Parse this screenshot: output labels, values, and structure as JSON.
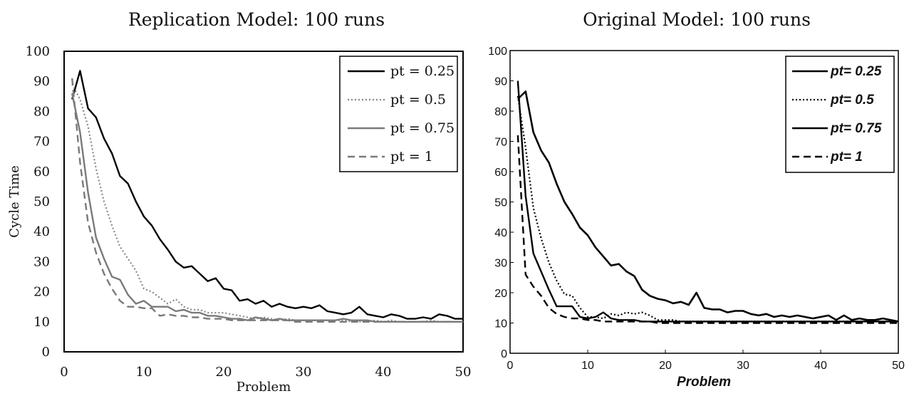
{
  "chart_data": [
    {
      "type": "line",
      "title": "Replication Model: 100 runs",
      "xlabel": "Problem",
      "ylabel": "Cycle Time",
      "xlim": [
        0,
        50
      ],
      "ylim": [
        0,
        100
      ],
      "xticks": [
        "0",
        "10",
        "20",
        "30",
        "40",
        "50"
      ],
      "yticks": [
        "0",
        "10",
        "20",
        "30",
        "40",
        "50",
        "60",
        "70",
        "80",
        "90",
        "100"
      ],
      "legend_position": "top-right",
      "series": [
        {
          "name": "pt = 0.25",
          "color": "#000000",
          "style": "solid",
          "x": [
            1,
            2,
            3,
            4,
            5,
            6,
            7,
            8,
            9,
            10,
            11,
            12,
            13,
            14,
            15,
            16,
            17,
            18,
            19,
            20,
            21,
            22,
            23,
            24,
            25,
            26,
            27,
            28,
            29,
            30,
            31,
            32,
            33,
            34,
            35,
            36,
            37,
            38,
            39,
            40,
            41,
            42,
            43,
            44,
            45,
            46,
            47,
            48,
            49,
            50
          ],
          "y": [
            84,
            93.5,
            81,
            78,
            71,
            66,
            58.5,
            56,
            50,
            45,
            42,
            37.5,
            34,
            30,
            28,
            28.5,
            26,
            23.5,
            24.5,
            21,
            20.5,
            17,
            17.5,
            16,
            17,
            15,
            16,
            15,
            14.5,
            15,
            14.5,
            15.5,
            13.5,
            13,
            12.5,
            13,
            15,
            12.5,
            12,
            11.5,
            12.5,
            12,
            11,
            11,
            11.5,
            11,
            12.5,
            12,
            11,
            11
          ]
        },
        {
          "name": "pt = 0.5",
          "color": "#888888",
          "style": "dotted",
          "x": [
            1,
            2,
            3,
            4,
            5,
            6,
            7,
            8,
            9,
            10,
            11,
            12,
            13,
            14,
            15,
            16,
            17,
            18,
            19,
            20,
            21,
            22,
            23,
            24,
            25,
            26,
            27,
            28,
            29,
            30,
            31,
            32,
            33,
            34,
            35,
            36,
            37,
            38,
            39,
            40,
            41,
            42,
            43,
            44,
            45,
            46,
            47,
            48,
            49,
            50
          ],
          "y": [
            89,
            84,
            75,
            61,
            50,
            42,
            35,
            31,
            27,
            21,
            20,
            18,
            16,
            17.5,
            15,
            14,
            14,
            13,
            13,
            13,
            12.5,
            12,
            11.5,
            11,
            11.5,
            11,
            10.5,
            11,
            10.5,
            10.5,
            10.5,
            10.5,
            10.5,
            10.5,
            10.5,
            10,
            10,
            10,
            10.5,
            10,
            10.5,
            10,
            10,
            10,
            10,
            10.5,
            10,
            10,
            10,
            10
          ]
        },
        {
          "name": "pt = 0.75",
          "color": "#7a7a7a",
          "style": "solid",
          "x": [
            1,
            2,
            3,
            4,
            5,
            6,
            7,
            8,
            9,
            10,
            11,
            12,
            13,
            14,
            15,
            16,
            17,
            18,
            19,
            20,
            21,
            22,
            23,
            24,
            25,
            26,
            27,
            28,
            29,
            30,
            31,
            32,
            33,
            34,
            35,
            36,
            37,
            38,
            39,
            40,
            41,
            42,
            43,
            44,
            45,
            46,
            47,
            48,
            49,
            50
          ],
          "y": [
            86,
            73,
            53,
            38,
            31,
            25,
            24,
            19,
            16,
            17,
            15,
            15,
            15,
            13.5,
            14,
            13,
            13,
            12,
            12,
            11.5,
            11,
            11,
            10.5,
            11.5,
            11,
            10.5,
            11,
            10.5,
            10.5,
            10.5,
            10.5,
            10.5,
            10.5,
            10.5,
            11,
            10.5,
            10.5,
            10.5,
            10,
            10,
            10,
            10,
            10,
            10,
            10,
            10,
            10,
            10,
            10,
            10
          ]
        },
        {
          "name": "pt = 1",
          "color": "#7a7a7a",
          "style": "dashed",
          "x": [
            1,
            2,
            3,
            4,
            5,
            6,
            7,
            8,
            9,
            10,
            11,
            12,
            13,
            14,
            15,
            16,
            17,
            18,
            19,
            20,
            21,
            22,
            23,
            24,
            25,
            26,
            27,
            28,
            29,
            30,
            31,
            32,
            33,
            34,
            35,
            36,
            37,
            38,
            39,
            40,
            41,
            42,
            43,
            44,
            45,
            46,
            47,
            48,
            49,
            50
          ],
          "y": [
            91,
            63,
            43,
            33,
            26,
            21,
            17,
            15,
            15,
            14.5,
            14.5,
            12,
            12.5,
            12,
            12,
            11.5,
            11.5,
            11,
            11,
            11,
            10.5,
            10.5,
            10.5,
            10.5,
            10.5,
            10.5,
            10.5,
            10.5,
            10,
            10,
            10,
            10,
            10,
            10,
            10,
            10,
            10,
            10,
            10,
            10,
            10,
            10,
            10,
            10,
            10,
            10,
            10,
            10,
            10,
            10
          ]
        }
      ]
    },
    {
      "type": "line",
      "title": "Original Model: 100 runs",
      "xlabel": "Problem",
      "ylabel": "",
      "xlim": [
        0,
        50
      ],
      "ylim": [
        0,
        100
      ],
      "xticks": [
        "0",
        "10",
        "20",
        "30",
        "40",
        "50"
      ],
      "yticks": [
        "0",
        "10",
        "20",
        "30",
        "40",
        "50",
        "60",
        "70",
        "80",
        "90",
        "100"
      ],
      "legend_position": "top-right",
      "series": [
        {
          "name": "pt= 0.25",
          "color": "#000000",
          "style": "solid-thick",
          "x": [
            1,
            2,
            3,
            4,
            5,
            6,
            7,
            8,
            9,
            10,
            11,
            12,
            13,
            14,
            15,
            16,
            17,
            18,
            19,
            20,
            21,
            22,
            23,
            24,
            25,
            26,
            27,
            28,
            29,
            30,
            31,
            32,
            33,
            34,
            35,
            36,
            37,
            38,
            39,
            40,
            41,
            42,
            43,
            44,
            45,
            46,
            47,
            48,
            49,
            50
          ],
          "y": [
            84,
            86.5,
            73,
            67,
            63,
            56,
            50,
            46,
            41.5,
            39,
            35,
            32,
            29,
            29.5,
            27,
            25.5,
            21,
            19,
            18,
            17.5,
            16.5,
            17,
            16,
            20,
            15,
            14.5,
            14.5,
            13.5,
            14,
            14,
            13,
            12.5,
            13,
            12,
            12.5,
            12,
            12.5,
            12,
            11.5,
            12,
            12.5,
            11,
            12.5,
            11,
            11.5,
            11,
            11,
            11.5,
            11,
            10.5
          ]
        },
        {
          "name": "pt= 0.5",
          "color": "#000000",
          "style": "dotted",
          "x": [
            1,
            2,
            3,
            4,
            5,
            6,
            7,
            8,
            9,
            10,
            11,
            12,
            13,
            14,
            15,
            16,
            17,
            18,
            19,
            20,
            21,
            22,
            23,
            24,
            25,
            26,
            27,
            28,
            29,
            30,
            31,
            32,
            33,
            34,
            35,
            36,
            37,
            38,
            39,
            40,
            41,
            42,
            43,
            44,
            45,
            46,
            47,
            48,
            49,
            50
          ],
          "y": [
            85,
            68,
            48,
            38,
            30,
            24,
            19.5,
            19,
            15,
            12,
            12,
            11.5,
            13,
            12.5,
            13.5,
            13,
            13.5,
            12.5,
            11,
            11,
            11,
            10.5,
            10.5,
            10.5,
            10.5,
            10.5,
            10.5,
            10.5,
            10.5,
            10.5,
            10.5,
            10.5,
            10.5,
            10.5,
            10.5,
            10.5,
            10.5,
            10.5,
            10.5,
            10.5,
            10.5,
            10.5,
            10.5,
            10.5,
            10.5,
            10.5,
            10.5,
            10.5,
            10.5,
            10.5
          ]
        },
        {
          "name": "pt= 0.75",
          "color": "#000000",
          "style": "solid",
          "x": [
            1,
            2,
            3,
            4,
            5,
            6,
            7,
            8,
            9,
            10,
            11,
            12,
            13,
            14,
            15,
            16,
            17,
            18,
            19,
            20,
            21,
            22,
            23,
            24,
            25,
            26,
            27,
            28,
            29,
            30,
            31,
            32,
            33,
            34,
            35,
            36,
            37,
            38,
            39,
            40,
            41,
            42,
            43,
            44,
            45,
            46,
            47,
            48,
            49,
            50
          ],
          "y": [
            90,
            52,
            33,
            27,
            21,
            15.5,
            15.5,
            15.5,
            12,
            11.5,
            12,
            13.5,
            11.5,
            11,
            11,
            11,
            10.5,
            10.5,
            10.5,
            10.5,
            10.5,
            10.5,
            10.5,
            10.5,
            10.5,
            10.5,
            10.5,
            10.5,
            10.5,
            10.5,
            10.5,
            10.5,
            10.5,
            10.5,
            10.5,
            10.5,
            10.5,
            10.5,
            10.5,
            10.5,
            10.5,
            10.5,
            10.5,
            10.5,
            10.5,
            10.5,
            10.5,
            10.5,
            10.5,
            10.5
          ]
        },
        {
          "name": "pt= 1",
          "color": "#000000",
          "style": "dashed",
          "x": [
            1,
            2,
            3,
            4,
            5,
            6,
            7,
            8,
            9,
            10,
            11,
            12,
            13,
            14,
            15,
            16,
            17,
            18,
            19,
            20,
            21,
            22,
            23,
            24,
            25,
            26,
            27,
            28,
            29,
            30,
            31,
            32,
            33,
            34,
            35,
            36,
            37,
            38,
            39,
            40,
            41,
            42,
            43,
            44,
            45,
            46,
            47,
            48,
            49,
            50
          ],
          "y": [
            72,
            26,
            22,
            19,
            15,
            13,
            12,
            11.5,
            11.5,
            11,
            11,
            10.5,
            10.5,
            10.5,
            10.5,
            10.5,
            10.5,
            10.5,
            10,
            10,
            10,
            10,
            10,
            10,
            10,
            10,
            10,
            10,
            10,
            10,
            10,
            10,
            10,
            10,
            10,
            10,
            10,
            10,
            10,
            10,
            10,
            10,
            10,
            10,
            10,
            10,
            10,
            10,
            10,
            10
          ]
        }
      ]
    }
  ]
}
